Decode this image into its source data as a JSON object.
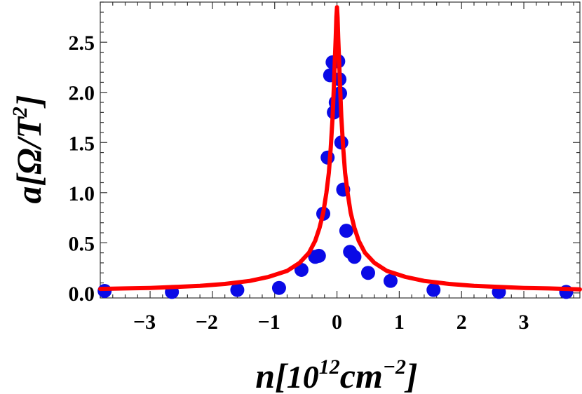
{
  "chart_data": {
    "type": "scatter",
    "xlabel": {
      "base": "n[",
      "exp_base": "10",
      "exp": "12",
      "unit": "cm",
      "unit_exp": "−2",
      "close": "]"
    },
    "ylabel": {
      "base": "a[Ω/T",
      "exp": "2",
      "close": "]"
    },
    "xlim": [
      -3.8,
      3.9
    ],
    "ylim": [
      -0.05,
      2.9
    ],
    "x_ticks": [
      -3,
      -2,
      -1,
      0,
      1,
      2,
      3
    ],
    "x_tick_labels": [
      "−3",
      "−2",
      "−1",
      "0",
      "1",
      "2",
      "3"
    ],
    "y_ticks": [
      0.0,
      0.5,
      1.0,
      1.5,
      2.0,
      2.5
    ],
    "y_tick_labels": [
      "0.0",
      "0.5",
      "1.0",
      "1.5",
      "2.0",
      "2.5"
    ],
    "grid": false,
    "series": [
      {
        "kind": "points",
        "color": "#0a0ae6",
        "x": [
          -3.73,
          -2.65,
          -1.6,
          -0.93,
          -0.57,
          -0.35,
          -0.29,
          -0.22,
          -0.15,
          -0.11,
          -0.07,
          -0.05,
          -0.02,
          0.0,
          0.02,
          0.04,
          0.05,
          0.07,
          0.1,
          0.15,
          0.21,
          0.28,
          0.5,
          0.86,
          1.55,
          2.6,
          3.68
        ],
        "y": [
          0.02,
          0.01,
          0.03,
          0.05,
          0.23,
          0.36,
          0.37,
          0.79,
          1.35,
          2.17,
          2.3,
          1.8,
          1.9,
          2.31,
          2.31,
          2.13,
          1.99,
          1.5,
          1.03,
          0.62,
          0.41,
          0.36,
          0.2,
          0.12,
          0.03,
          0.01,
          0.01
        ]
      },
      {
        "kind": "line",
        "color": "#ff0000",
        "x": [
          -3.8,
          -3.4,
          -3.0,
          -2.6,
          -2.2,
          -1.8,
          -1.4,
          -1.1,
          -0.8,
          -0.6,
          -0.45,
          -0.35,
          -0.28,
          -0.22,
          -0.17,
          -0.13,
          -0.1,
          -0.07,
          -0.05,
          -0.035,
          -0.02,
          -0.01,
          0.0,
          0.01,
          0.02,
          0.035,
          0.05,
          0.07,
          0.1,
          0.13,
          0.17,
          0.22,
          0.28,
          0.35,
          0.45,
          0.6,
          0.8,
          1.1,
          1.4,
          1.8,
          2.2,
          2.6,
          3.0,
          3.4,
          3.9
        ],
        "y": [
          0.04,
          0.045,
          0.05,
          0.06,
          0.07,
          0.09,
          0.12,
          0.16,
          0.22,
          0.3,
          0.4,
          0.52,
          0.65,
          0.8,
          1.0,
          1.2,
          1.45,
          1.75,
          2.05,
          2.3,
          2.55,
          2.75,
          2.85,
          2.75,
          2.55,
          2.3,
          2.05,
          1.75,
          1.45,
          1.2,
          1.0,
          0.8,
          0.65,
          0.52,
          0.4,
          0.3,
          0.22,
          0.16,
          0.12,
          0.09,
          0.07,
          0.06,
          0.05,
          0.045,
          0.035
        ]
      }
    ]
  }
}
